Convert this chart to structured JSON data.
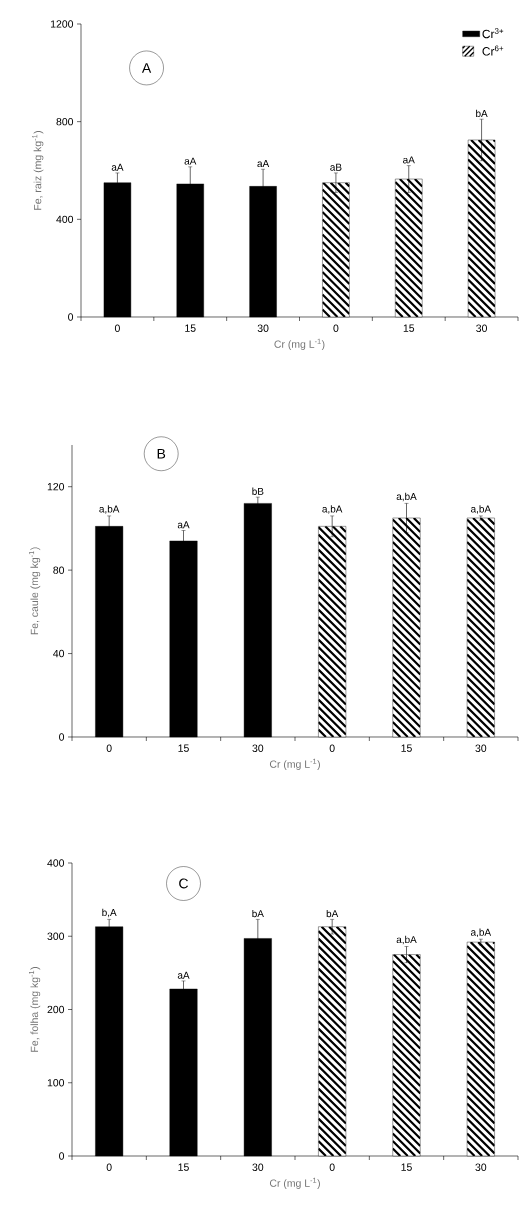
{
  "chart_data": [
    {
      "type": "bar",
      "categories": [
        "0",
        "15",
        "30",
        "0",
        "15",
        "30"
      ],
      "xlabel": "Cr (mg L$^{-1}$)",
      "ylabel": "Fe, raiz (mg kg$^{-1}$)",
      "ylim": [
        0,
        1200
      ],
      "yticks": [
        0,
        400,
        800,
        1200
      ],
      "legend": "top right",
      "annotations": [
        "A"
      ],
      "series": [
        {
          "name": "Cr$^{3+}$",
          "color": "#000000",
          "values": [
            550,
            545,
            535,
            null,
            null,
            null
          ],
          "errors": [
            40,
            70,
            70,
            null,
            null,
            null
          ],
          "value_labels": [
            "aA",
            "aA",
            "aA",
            null,
            null,
            null
          ]
        },
        {
          "name": "Cr$^{6+}$",
          "color": "#000000",
          "values": [
            null,
            null,
            null,
            550,
            565,
            725
          ],
          "errors": [
            null,
            null,
            null,
            40,
            55,
            85
          ],
          "value_labels": [
            null,
            null,
            null,
            "aB",
            "aA",
            "bA"
          ]
        }
      ]
    },
    {
      "type": "bar",
      "categories": [
        "0",
        "15",
        "30",
        "0",
        "15",
        "30"
      ],
      "xlabel": "Cr (mg L$^{-1}$)",
      "ylabel": "Fe, caule (mg kg$^{-1}$)",
      "ylim": [
        0,
        140
      ],
      "yticks": [
        0,
        40,
        80,
        120
      ],
      "annotations": [
        "B"
      ],
      "series": [
        {
          "color": "#000000",
          "values": [
            101,
            94,
            112,
            null,
            null,
            null
          ],
          "errors": [
            5,
            5,
            3,
            null,
            null,
            null
          ],
          "value_labels": [
            "a,bA",
            "aA",
            "bB",
            null,
            null,
            null
          ]
        },
        {
          "color": "#000000",
          "values": [
            null,
            null,
            null,
            101,
            105,
            105
          ],
          "errors": [
            null,
            null,
            null,
            5,
            7,
            1
          ],
          "value_labels": [
            null,
            null,
            null,
            "a,bA",
            "a,bA",
            "a,bA"
          ]
        }
      ]
    },
    {
      "type": "bar",
      "categories": [
        "0",
        "15",
        "30",
        "0",
        "15",
        "30"
      ],
      "xlabel": "Cr (mg L$^{-1}$)",
      "ylabel": "Fe, folha (mg kg$^{-1}$)",
      "ylim": [
        0,
        400
      ],
      "yticks": [
        0,
        100,
        200,
        300,
        400
      ],
      "annotations": [
        "C"
      ],
      "series": [
        {
          "color": "#000000",
          "values": [
            313,
            228,
            297,
            null,
            null,
            null
          ],
          "errors": [
            10,
            11,
            26,
            null,
            null,
            null
          ],
          "value_labels": [
            "b,A",
            "aA",
            "bA",
            null,
            null,
            null
          ]
        },
        {
          "color": "#000000",
          "values": [
            null,
            null,
            null,
            313,
            275,
            292
          ],
          "errors": [
            null,
            null,
            null,
            10,
            11,
            4
          ],
          "value_labels": [
            null,
            null,
            null,
            "bA",
            "a,bA",
            "a,bA"
          ]
        }
      ]
    }
  ]
}
